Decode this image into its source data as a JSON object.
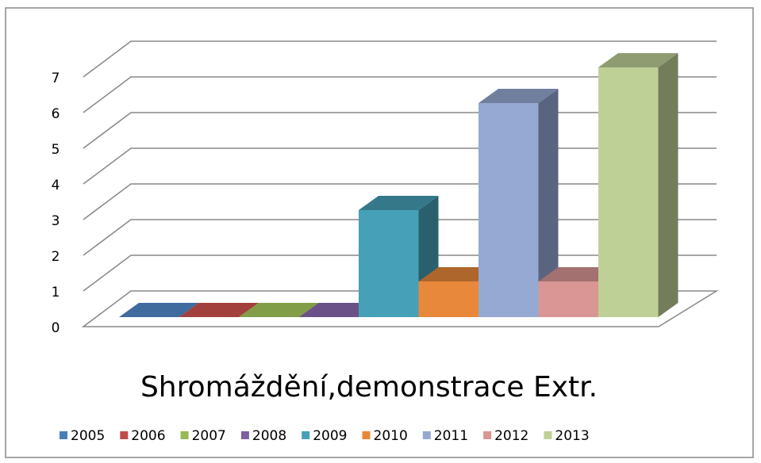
{
  "chart_data": {
    "type": "bar3d",
    "title": "Shromáždění,demonstrace Extr.",
    "series": [
      {
        "name": "2005",
        "color": "#4a7ebb",
        "values": [
          0
        ]
      },
      {
        "name": "2006",
        "color": "#be4b48",
        "values": [
          0
        ]
      },
      {
        "name": "2007",
        "color": "#98b954",
        "values": [
          0
        ]
      },
      {
        "name": "2008",
        "color": "#7d60a0",
        "values": [
          0
        ]
      },
      {
        "name": "2009",
        "color": "#46a0b8",
        "values": [
          3
        ]
      },
      {
        "name": "2010",
        "color": "#e8883a",
        "values": [
          1
        ]
      },
      {
        "name": "2011",
        "color": "#95a9d3",
        "values": [
          6
        ]
      },
      {
        "name": "2012",
        "color": "#d99694",
        "values": [
          1
        ]
      },
      {
        "name": "2013",
        "color": "#bfd096",
        "values": [
          7
        ]
      }
    ],
    "ylim": [
      0,
      7
    ],
    "yticks": [
      0,
      1,
      2,
      3,
      4,
      5,
      6,
      7
    ],
    "grid": true,
    "legend": "bottom"
  }
}
